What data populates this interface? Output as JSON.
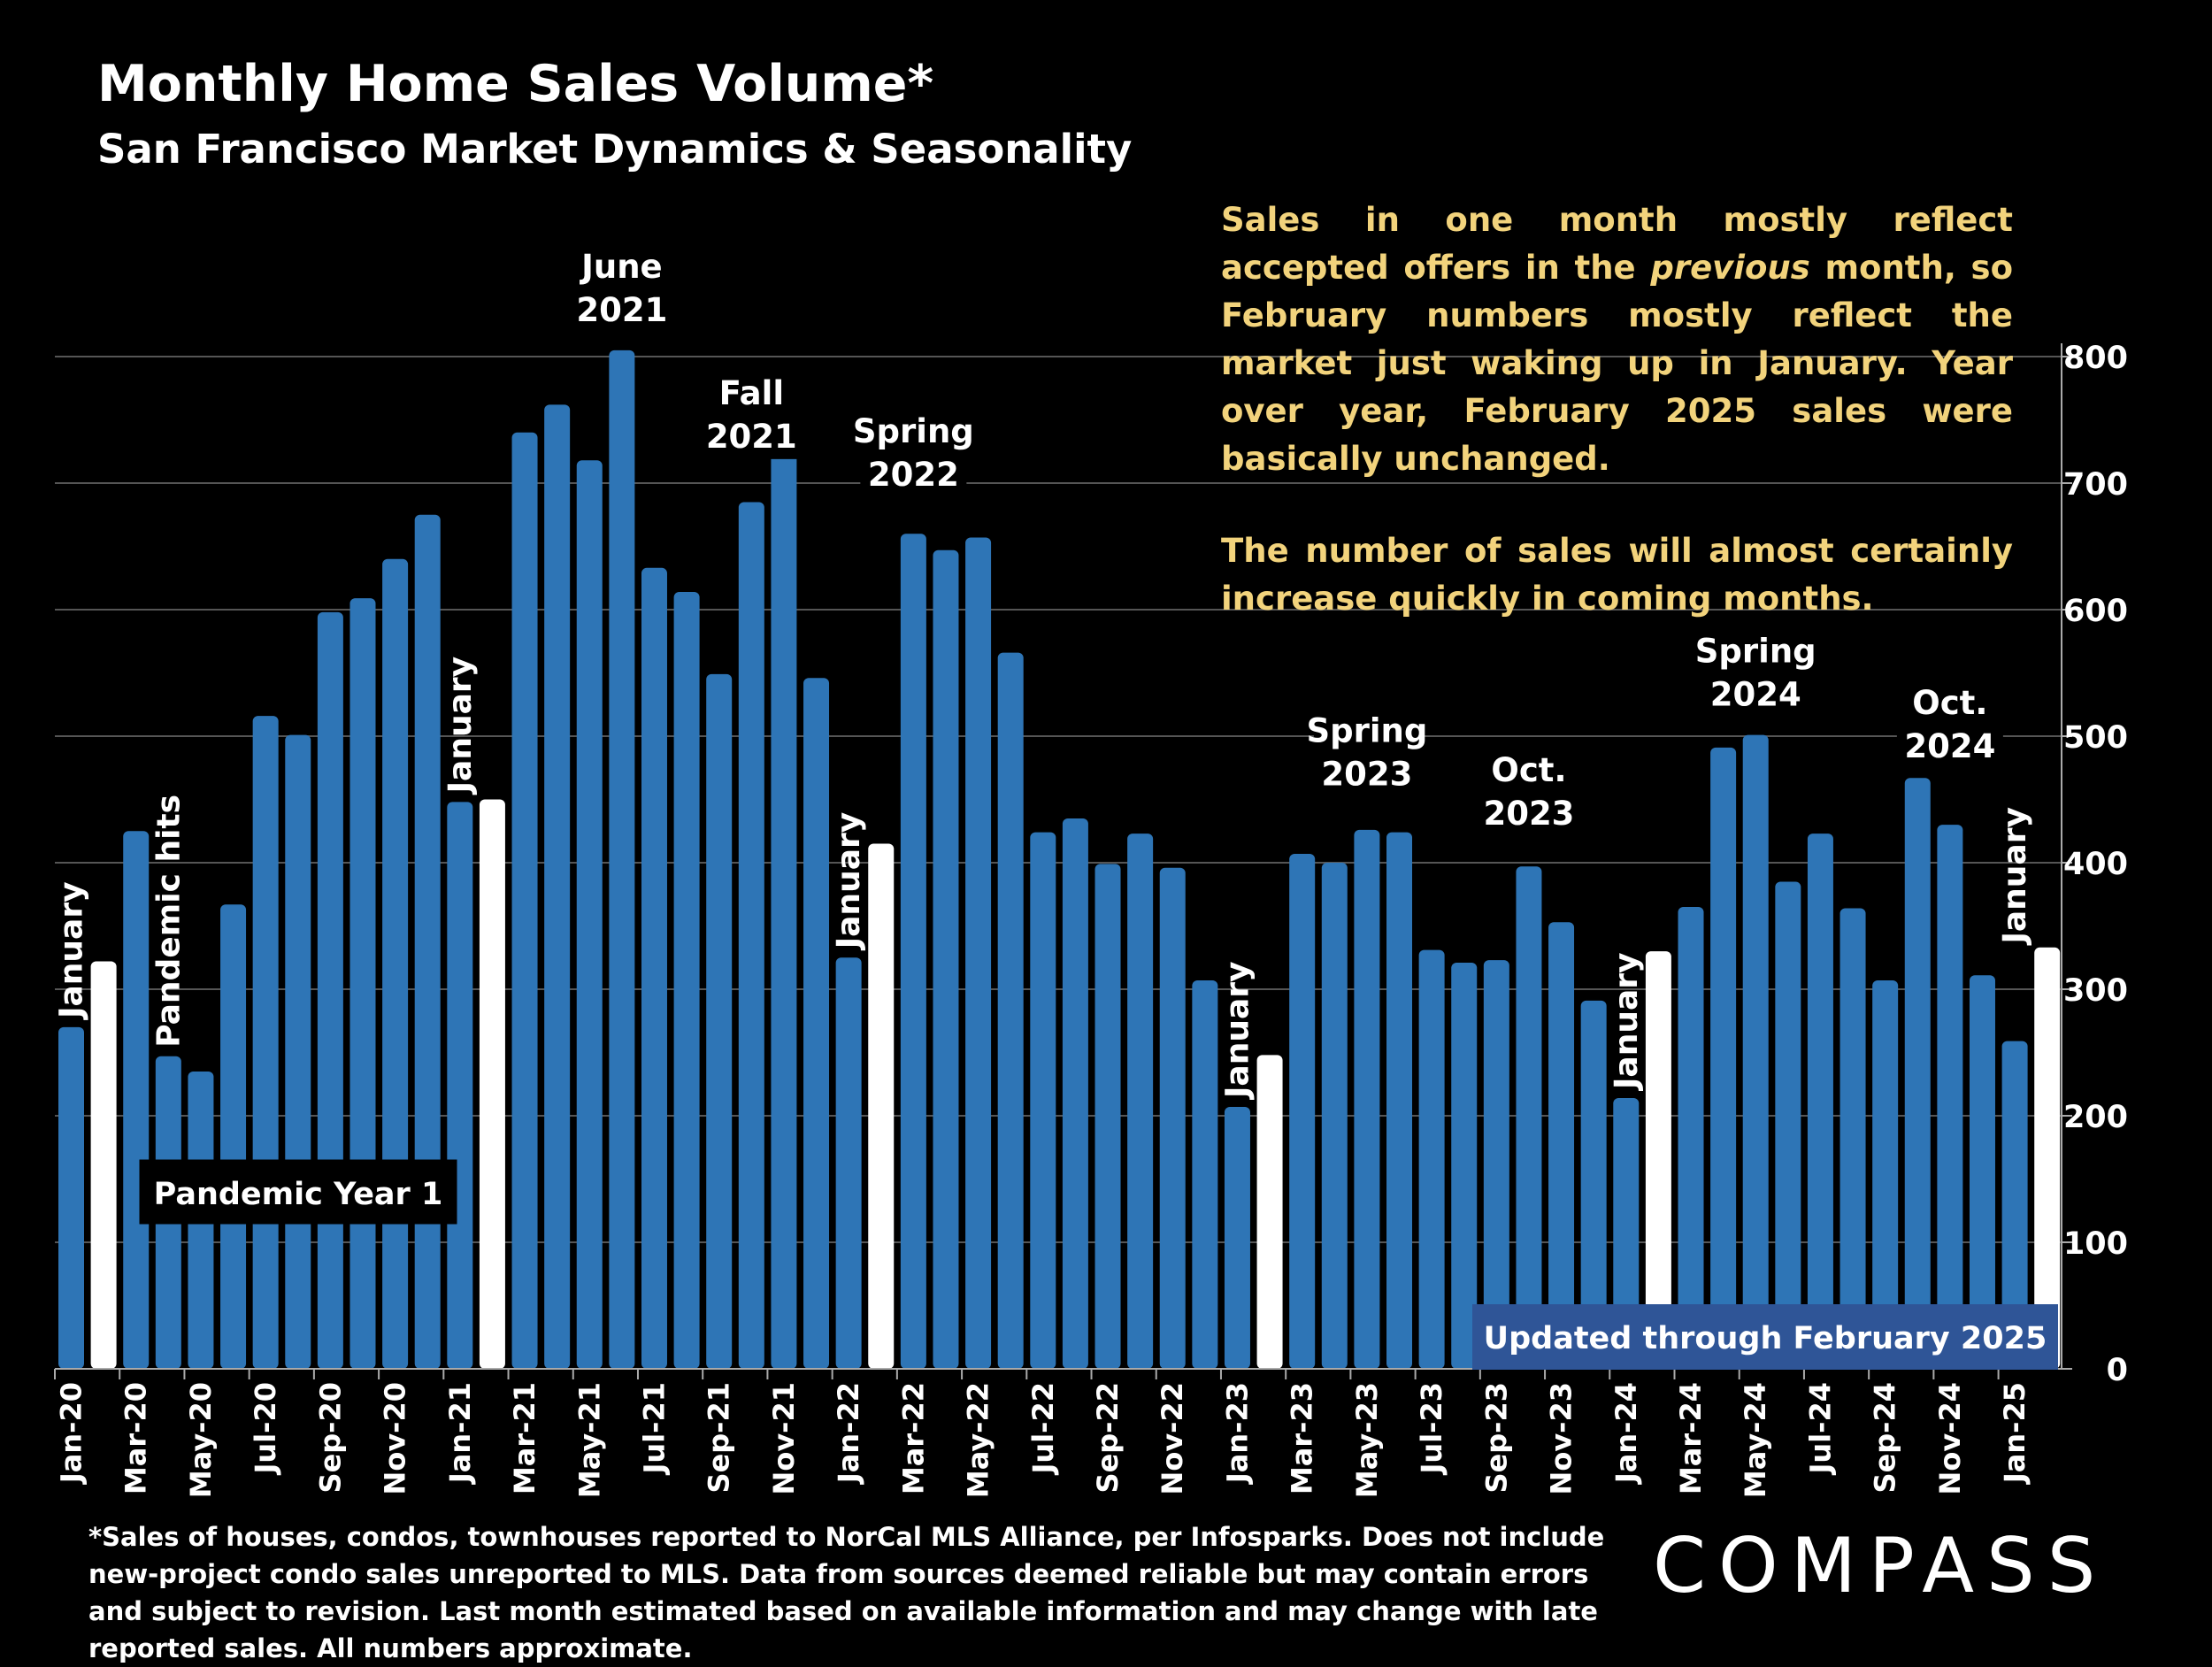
{
  "header": {
    "title": "Monthly Home Sales Volume*",
    "subtitle": "San Francisco Market Dynamics & Seasonality"
  },
  "note": {
    "para1_a": "Sales in one month mostly reflect accepted offers in the ",
    "para1_em": "previous",
    "para1_b": " month, so February numbers mostly reflect the market just waking up in January. Year over year, February 2025 sales were basically unchanged.",
    "para2": "The number of sales will almost certainly increase quickly in coming months."
  },
  "footnote": "*Sales of houses, condos, townhouses reported to NorCal MLS Alliance, per Infosparks. Does not include new-project condo sales unreported to MLS. Data from sources deemed reliable but may contain errors and subject to revision. Last month estimated based on available information and may change with late reported sales. All numbers approximate.",
  "logo": "COMPASS",
  "colors": {
    "bar": "#2e75b6",
    "highlight": "#ffffff",
    "note": "#f2d37c",
    "updated_box": "#2f5597",
    "grid": "#555555"
  },
  "chart_data": {
    "type": "bar",
    "title": "Monthly Home Sales Volume*",
    "ylim": [
      0,
      800
    ],
    "yticks": [
      "0",
      "100",
      "200",
      "300",
      "400",
      "500",
      "600",
      "700",
      "800"
    ],
    "categories": [
      "Jan-20",
      "Feb-20",
      "Mar-20",
      "Apr-20",
      "May-20",
      "Jun-20",
      "Jul-20",
      "Aug-20",
      "Sep-20",
      "Oct-20",
      "Nov-20",
      "Dec-20",
      "Jan-21",
      "Feb-21",
      "Mar-21",
      "Apr-21",
      "May-21",
      "Jun-21",
      "Jul-21",
      "Aug-21",
      "Sep-21",
      "Oct-21",
      "Nov-21",
      "Dec-21",
      "Jan-22",
      "Feb-22",
      "Mar-22",
      "Apr-22",
      "May-22",
      "Jun-22",
      "Jul-22",
      "Aug-22",
      "Sep-22",
      "Oct-22",
      "Nov-22",
      "Dec-22",
      "Jan-23",
      "Feb-23",
      "Mar-23",
      "Apr-23",
      "May-23",
      "Jun-23",
      "Jul-23",
      "Aug-23",
      "Sep-23",
      "Oct-23",
      "Nov-23",
      "Dec-23",
      "Jan-24",
      "Feb-24",
      "Mar-24",
      "Apr-24",
      "May-24",
      "Jun-24",
      "Jul-24",
      "Aug-24",
      "Sep-24",
      "Oct-24",
      "Nov-24",
      "Dec-24",
      "Jan-25",
      "Feb-25"
    ],
    "tick_labels": [
      "Jan-20",
      "Mar-20",
      "May-20",
      "Jul-20",
      "Sep-20",
      "Nov-20",
      "Jan-21",
      "Mar-21",
      "May-21",
      "Jul-21",
      "Sep-21",
      "Nov-21",
      "Jan-22",
      "Mar-22",
      "May-22",
      "Jul-22",
      "Sep-22",
      "Nov-22",
      "Jan-23",
      "Mar-23",
      "May-23",
      "Jul-23",
      "Sep-23",
      "Nov-23",
      "Jan-24",
      "Mar-24",
      "May-24",
      "Jul-24",
      "Sep-24",
      "Nov-24",
      "Jan-25"
    ],
    "values": [
      270,
      322,
      425,
      247,
      235,
      367,
      516,
      501,
      598,
      609,
      640,
      675,
      448,
      450,
      740,
      762,
      718,
      805,
      633,
      614,
      549,
      685,
      726,
      546,
      325,
      415,
      660,
      647,
      657,
      566,
      424,
      435,
      399,
      423,
      396,
      307,
      207,
      248,
      407,
      400,
      426,
      424,
      331,
      321,
      323,
      397,
      353,
      291,
      214,
      330,
      365,
      491,
      501,
      385,
      423,
      364,
      307,
      467,
      430,
      311,
      259,
      333
    ],
    "highlight_categories": [
      "Feb-20",
      "Feb-21",
      "Feb-22",
      "Feb-23",
      "Feb-24",
      "Feb-25"
    ],
    "annotations": {
      "june2021": [
        "June",
        "2021"
      ],
      "fall2021": [
        "Fall",
        "2021"
      ],
      "spring2022": [
        "Spring",
        "2022"
      ],
      "spring2023": [
        "Spring",
        "2023"
      ],
      "oct2023": [
        "Oct.",
        "2023"
      ],
      "spring2024": [
        "Spring",
        "2024"
      ],
      "oct2024": [
        "Oct.",
        "2024"
      ],
      "pandemic_hits": "Pandemic hits",
      "january": "January",
      "pandemic_year": "Pandemic Year 1",
      "updated": "Updated through February 2025"
    }
  }
}
